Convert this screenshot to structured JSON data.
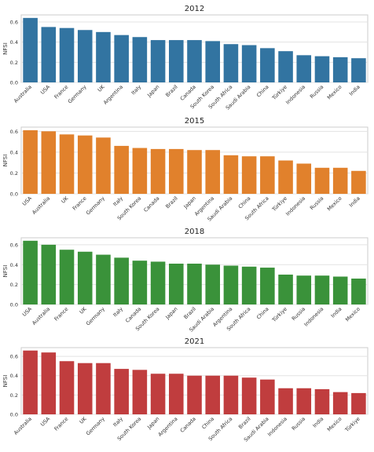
{
  "chart_data": [
    {
      "type": "bar",
      "title": "2012",
      "ylabel": "NFSI",
      "xlabel": "",
      "ylim": [
        0,
        0.67
      ],
      "yticks": [
        0.0,
        0.2,
        0.4,
        0.6
      ],
      "ytick_labels": [
        "0.0",
        "0.2",
        "0.4",
        "0.6"
      ],
      "grid": true,
      "color": "#3274a1",
      "categories": [
        "Australia",
        "USA",
        "France",
        "Germany",
        "UK",
        "Argentina",
        "Italy",
        "Japan",
        "Brazil",
        "Canada",
        "South Korea",
        "South Africa",
        "Saudi Arabia",
        "China",
        "Türkiye",
        "Indonesia",
        "Russia",
        "Mexico",
        "India"
      ],
      "values": [
        0.64,
        0.55,
        0.54,
        0.52,
        0.5,
        0.47,
        0.45,
        0.42,
        0.42,
        0.42,
        0.41,
        0.38,
        0.37,
        0.34,
        0.31,
        0.27,
        0.26,
        0.25,
        0.24
      ]
    },
    {
      "type": "bar",
      "title": "2015",
      "ylabel": "NFSI",
      "xlabel": "",
      "ylim": [
        0,
        0.64
      ],
      "yticks": [
        0.0,
        0.2,
        0.4,
        0.6
      ],
      "ytick_labels": [
        "0.0",
        "0.2",
        "0.4",
        "0.6"
      ],
      "grid": true,
      "color": "#e1812c",
      "categories": [
        "USA",
        "Australia",
        "UK",
        "France",
        "Germany",
        "Italy",
        "South Korea",
        "Canada",
        "Brazil",
        "Japan",
        "Argentina",
        "Saudi Arabia",
        "China",
        "South Africa",
        "Türkiye",
        "Indonesia",
        "Russia",
        "Mexico",
        "India"
      ],
      "values": [
        0.61,
        0.6,
        0.57,
        0.56,
        0.54,
        0.46,
        0.44,
        0.43,
        0.43,
        0.42,
        0.42,
        0.37,
        0.36,
        0.36,
        0.32,
        0.29,
        0.25,
        0.25,
        0.22
      ]
    },
    {
      "type": "bar",
      "title": "2018",
      "ylabel": "NFSI",
      "xlabel": "",
      "ylim": [
        0,
        0.67
      ],
      "yticks": [
        0.0,
        0.2,
        0.4,
        0.6
      ],
      "ytick_labels": [
        "0.0",
        "0.2",
        "0.4",
        "0.6"
      ],
      "grid": true,
      "color": "#3a923a",
      "categories": [
        "USA",
        "Australia",
        "France",
        "UK",
        "Germany",
        "Italy",
        "Canada",
        "South Korea",
        "Japan",
        "Brazil",
        "Saudi Arabia",
        "Argentina",
        "South Africa",
        "China",
        "Türkiye",
        "Russia",
        "Indonesia",
        "India",
        "Mexico"
      ],
      "values": [
        0.64,
        0.6,
        0.55,
        0.53,
        0.5,
        0.47,
        0.44,
        0.43,
        0.41,
        0.41,
        0.4,
        0.39,
        0.38,
        0.37,
        0.3,
        0.29,
        0.29,
        0.28,
        0.26
      ]
    },
    {
      "type": "bar",
      "title": "2021",
      "ylabel": "NFSI",
      "xlabel": "",
      "ylim": [
        0,
        0.69
      ],
      "yticks": [
        0.0,
        0.2,
        0.4,
        0.6
      ],
      "ytick_labels": [
        "0.0",
        "0.2",
        "0.4",
        "0.6"
      ],
      "grid": true,
      "color": "#c03d3e",
      "categories": [
        "Australia",
        "USA",
        "France",
        "UK",
        "Germany",
        "Italy",
        "South Korea",
        "Japan",
        "Argentina",
        "Canada",
        "China",
        "South Africa",
        "Brazil",
        "Saudi Arabia",
        "Indonesia",
        "Russia",
        "India",
        "Mexico",
        "Türkiye"
      ],
      "values": [
        0.66,
        0.64,
        0.55,
        0.53,
        0.53,
        0.47,
        0.46,
        0.42,
        0.42,
        0.4,
        0.4,
        0.4,
        0.38,
        0.36,
        0.27,
        0.27,
        0.26,
        0.23,
        0.22
      ]
    }
  ]
}
